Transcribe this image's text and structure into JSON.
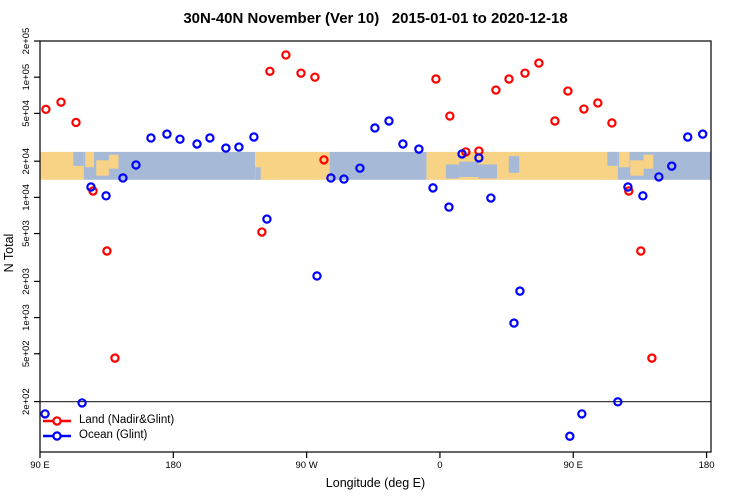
{
  "title": "30N-40N November (Ver 10)   2015-01-01 to 2020-12-18",
  "chart_data": {
    "type": "scatter",
    "title": "30N-40N November (Ver 10)   2015-01-01 to 2020-12-18",
    "xlabel": "Longitude (deg E)",
    "ylabel": "N Total",
    "x_axis": {
      "note": "axis wraps 450 degrees starting at 90E",
      "range_deg": [
        90,
        543
      ],
      "ticks": [
        {
          "label": "90 E",
          "lon": 90
        },
        {
          "label": "180",
          "lon": 180
        },
        {
          "label": "90 W",
          "lon": 270
        },
        {
          "label": "0",
          "lon": 360
        },
        {
          "label": "90 E",
          "lon": 450
        },
        {
          "label": "180",
          "lon": 540
        }
      ]
    },
    "y_axis": {
      "scale": "log",
      "range": [
        76,
        200000
      ],
      "ticks": [
        {
          "label": "2e+05",
          "value": 200000
        },
        {
          "label": "1e+05",
          "value": 100000
        },
        {
          "label": "5e+04",
          "value": 50000
        },
        {
          "label": "2e+04",
          "value": 20000
        },
        {
          "label": "1e+04",
          "value": 10000
        },
        {
          "label": "5e+03",
          "value": 5000
        },
        {
          "label": "2e+03",
          "value": 2000
        },
        {
          "label": "1e+03",
          "value": 1000
        },
        {
          "label": "5e+02",
          "value": 500
        },
        {
          "label": "2e+02",
          "value": 200
        }
      ]
    },
    "reference_line_value": 200,
    "grid": false,
    "legend_position": "bottom-left-inside",
    "series": [
      {
        "name": "Land (Nadir&Glint)",
        "color": "#ff0000",
        "marker": "open-circle",
        "points": [
          [
            94.0,
            54000
          ],
          [
            104.2,
            62000
          ],
          [
            114.3,
            42000
          ],
          [
            125.8,
            11300
          ],
          [
            135.2,
            3580
          ],
          [
            140.6,
            460
          ],
          [
            239.8,
            5150
          ],
          [
            245.2,
            112000
          ],
          [
            256.0,
            153000
          ],
          [
            266.2,
            108000
          ],
          [
            275.6,
            100000
          ],
          [
            281.7,
            20500
          ],
          [
            357.3,
            96600
          ],
          [
            366.7,
            47500
          ],
          [
            377.5,
            23900
          ],
          [
            386.3,
            24300
          ],
          [
            397.8,
            78200
          ],
          [
            406.6,
            96600
          ],
          [
            417.4,
            108000
          ],
          [
            426.8,
            131000
          ],
          [
            437.6,
            43200
          ],
          [
            446.4,
            76700
          ],
          [
            457.2,
            54300
          ],
          [
            466.6,
            61000
          ],
          [
            476.1,
            41600
          ],
          [
            487.5,
            11300
          ],
          [
            495.6,
            3580
          ],
          [
            503.1,
            460
          ]
        ]
      },
      {
        "name": "Ocean (Glint)",
        "color": "#0000ff",
        "marker": "open-circle",
        "points": [
          [
            93.4,
            158
          ],
          [
            118.4,
            195
          ],
          [
            124.4,
            12200
          ],
          [
            134.6,
            10300
          ],
          [
            146.0,
            14500
          ],
          [
            154.8,
            18600
          ],
          [
            164.9,
            31200
          ],
          [
            175.7,
            33600
          ],
          [
            184.5,
            30500
          ],
          [
            196.0,
            27800
          ],
          [
            204.7,
            31200
          ],
          [
            215.5,
            25700
          ],
          [
            224.3,
            26200
          ],
          [
            234.4,
            31800
          ],
          [
            243.2,
            6600
          ],
          [
            277.0,
            2220
          ],
          [
            286.4,
            14500
          ],
          [
            295.2,
            14200
          ],
          [
            306.0,
            17500
          ],
          [
            316.1,
            37800
          ],
          [
            325.6,
            43200
          ],
          [
            335.0,
            27800
          ],
          [
            345.8,
            25200
          ],
          [
            355.3,
            12000
          ],
          [
            366.1,
            8300
          ],
          [
            374.9,
            23000
          ],
          [
            386.3,
            21300
          ],
          [
            394.4,
            9880
          ],
          [
            410.0,
            900
          ],
          [
            414.0,
            1660
          ],
          [
            447.7,
            103
          ],
          [
            455.8,
            158
          ],
          [
            480.1,
            199
          ],
          [
            486.9,
            12200
          ],
          [
            497.0,
            10300
          ],
          [
            507.8,
            14800
          ],
          [
            516.5,
            18200
          ],
          [
            527.3,
            31800
          ],
          [
            537.4,
            33600
          ]
        ]
      }
    ],
    "map_band": {
      "description": "30N-40N latitude land/ocean strip drawn across the plot",
      "value_top": 23900,
      "value_bottom": 14000,
      "land_color": "#f8d285",
      "ocean_color": "#a6bad8",
      "segments": [
        {
          "type": "land",
          "from": 90,
          "to": 119.5
        },
        {
          "type": "ocean",
          "from": 119.5,
          "to": 235.3
        },
        {
          "type": "land",
          "from": 235.3,
          "to": 285.5
        },
        {
          "type": "ocean",
          "from": 285.5,
          "to": 351
        },
        {
          "type": "land",
          "from": 351,
          "to": 480
        },
        {
          "type": "ocean",
          "from": 480,
          "to": 543
        }
      ],
      "patches": [
        {
          "type": "land",
          "from": 120.5,
          "to": 126.5,
          "v0": 0.0,
          "v1": 0.55
        },
        {
          "type": "land",
          "from": 128.0,
          "to": 136.5,
          "v0": 0.3,
          "v1": 0.85
        },
        {
          "type": "land",
          "from": 136.5,
          "to": 143.0,
          "v0": 0.1,
          "v1": 0.6
        },
        {
          "type": "land",
          "from": 481.0,
          "to": 488.0,
          "v0": 0.0,
          "v1": 0.55
        },
        {
          "type": "land",
          "from": 488.5,
          "to": 497.5,
          "v0": 0.3,
          "v1": 0.85
        },
        {
          "type": "land",
          "from": 497.5,
          "to": 504.0,
          "v0": 0.1,
          "v1": 0.6
        },
        {
          "type": "ocean",
          "from": 112.5,
          "to": 119.5,
          "v0": 0.0,
          "v1": 0.5
        },
        {
          "type": "ocean",
          "from": 235.3,
          "to": 239.0,
          "v0": 0.55,
          "v1": 1.0
        },
        {
          "type": "ocean",
          "from": 364.0,
          "to": 373.0,
          "v0": 0.45,
          "v1": 0.95
        },
        {
          "type": "ocean",
          "from": 373.0,
          "to": 386.0,
          "v0": 0.35,
          "v1": 0.9
        },
        {
          "type": "ocean",
          "from": 386.0,
          "to": 398.5,
          "v0": 0.45,
          "v1": 0.95
        },
        {
          "type": "ocean",
          "from": 406.5,
          "to": 413.5,
          "v0": 0.15,
          "v1": 0.75
        },
        {
          "type": "ocean",
          "from": 473.0,
          "to": 480.0,
          "v0": 0.0,
          "v1": 0.5
        }
      ]
    },
    "legend": {
      "items": [
        {
          "label": "Land (Nadir&Glint)",
          "color": "#ff0000"
        },
        {
          "label": "Ocean (Glint)",
          "color": "#0000ff"
        }
      ]
    }
  },
  "colors": {
    "land_series": "#ff0000",
    "ocean_series": "#0000ff",
    "band_land": "#f8d285",
    "band_ocean": "#a6bad8",
    "axis": "#000000",
    "reference_line": "#3c3c3c",
    "background": "#ffffff"
  }
}
